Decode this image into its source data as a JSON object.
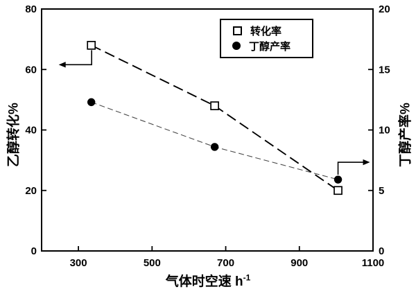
{
  "chart_data": {
    "type": "line",
    "title": "",
    "xlabel": "气体时空速 h",
    "xlabel_superscript": "-1",
    "ylabel_left": "乙醇转化%",
    "ylabel_right": "丁醇产率%",
    "x_range": [
      200,
      1100
    ],
    "x_ticks": [
      300,
      500,
      700,
      900,
      1100
    ],
    "yleft_range": [
      0,
      80
    ],
    "yleft_ticks": [
      0,
      20,
      40,
      60,
      80
    ],
    "yright_range": [
      0,
      20
    ],
    "yright_ticks": [
      0,
      5,
      10,
      15,
      20
    ],
    "grid": false,
    "legend_position": "top-center-inside",
    "series": [
      {
        "name": "转化率",
        "axis": "left",
        "marker": "open-square",
        "line": "long-dash",
        "line_color": "#000000",
        "marker_color": "#000000",
        "x": [
          335,
          670,
          1005
        ],
        "values": [
          68,
          48,
          20
        ]
      },
      {
        "name": "丁醇产率",
        "axis": "right",
        "marker": "filled-circle",
        "line": "short-dash",
        "line_color": "#4a4a4a",
        "marker_color": "#000000",
        "x": [
          335,
          670,
          1005
        ],
        "values": [
          12.3,
          8.6,
          5.9
        ]
      }
    ],
    "annotations": [
      {
        "type": "arrow",
        "direction": "left",
        "meaning": "转化率 series reads on left axis",
        "from_point": {
          "series": 0,
          "index": 0
        }
      },
      {
        "type": "arrow",
        "direction": "right",
        "meaning": "丁醇产率 series reads on right axis",
        "from_point": {
          "series": 1,
          "index": 2
        }
      }
    ]
  },
  "colors": {
    "background": "#ffffff",
    "axis": "#000000",
    "text": "#000000"
  }
}
